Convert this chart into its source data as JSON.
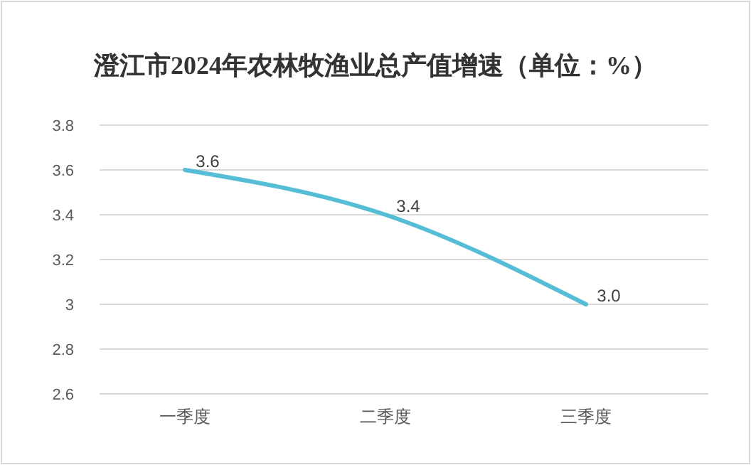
{
  "chart_data": {
    "type": "line",
    "title": "澄江市2024年农林牧渔业总产值增速（单位：%）",
    "categories": [
      "一季度",
      "二季度",
      "三季度"
    ],
    "series": [
      {
        "color": "#55bdd6",
        "values": [
          3.6,
          3.4,
          3.0
        ],
        "value_labels": [
          "3.6",
          "3.4",
          "3.0"
        ]
      }
    ],
    "ylim": [
      2.6,
      3.8
    ],
    "yticks": [
      2.6,
      2.8,
      3,
      3.2,
      3.4,
      3.6,
      3.8
    ],
    "grid": "y",
    "marker": "none",
    "line_style": "solid"
  }
}
